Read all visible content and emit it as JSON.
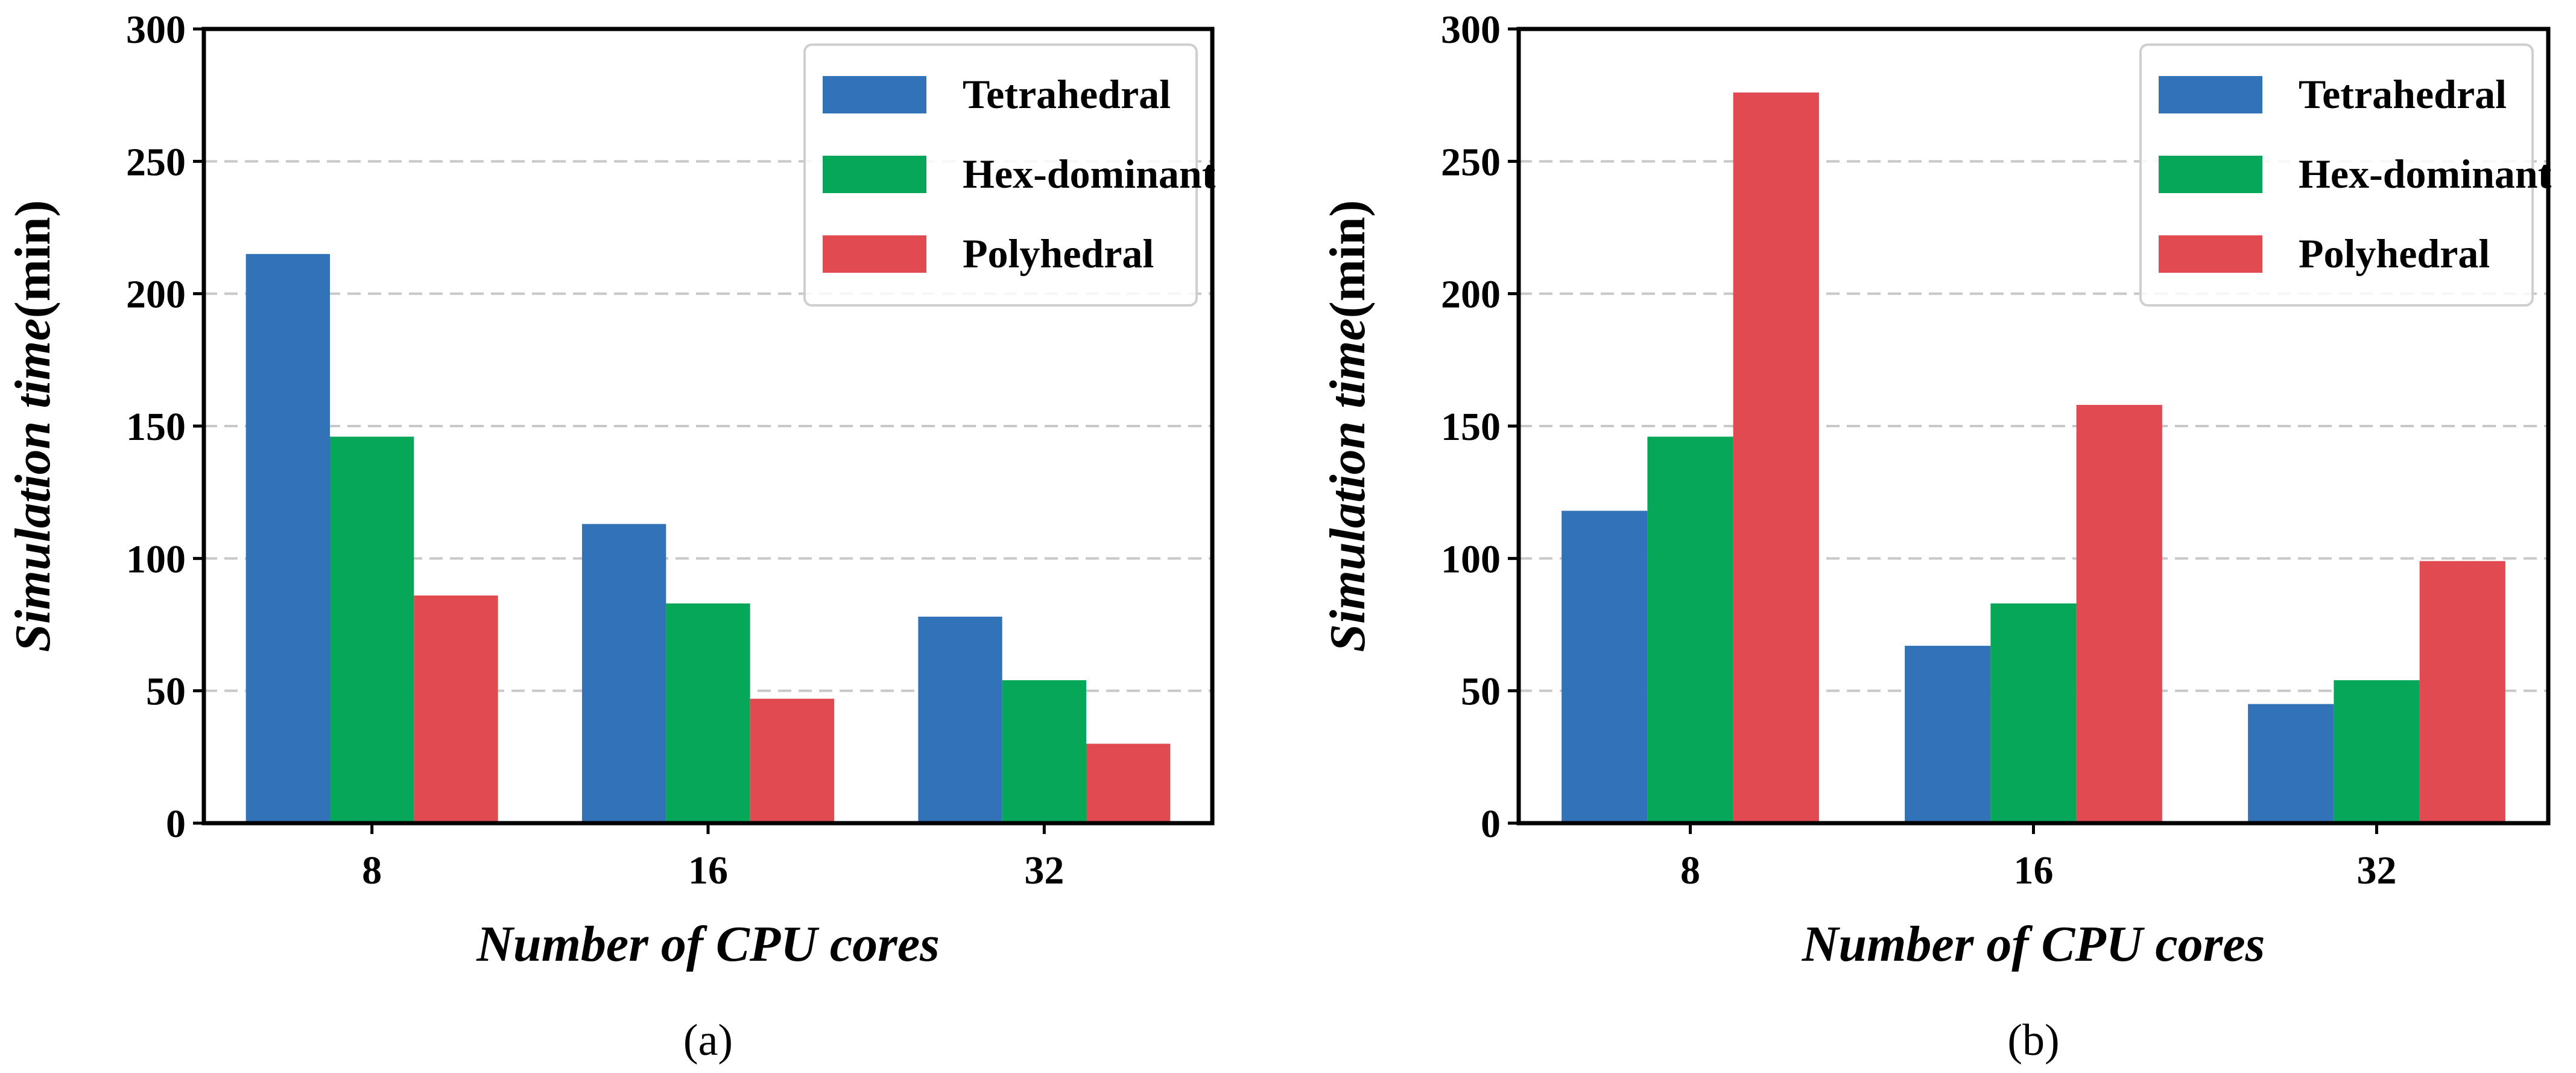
{
  "chart_data": [
    {
      "type": "bar",
      "panel_label": "(a)",
      "categories": [
        "8",
        "16",
        "32"
      ],
      "series": [
        {
          "name": "Tetrahedral",
          "color": "#3272b8",
          "values": [
            215,
            113,
            78
          ]
        },
        {
          "name": "Hex-dominant",
          "color": "#07a75a",
          "values": [
            146,
            83,
            54
          ]
        },
        {
          "name": "Polyhedral",
          "color": "#e24a51",
          "values": [
            86,
            47,
            30
          ]
        }
      ],
      "xlabel": "Number of CPU cores",
      "ylabel": "Simulation time",
      "ylabel_unit": "(min)",
      "ylim": [
        0,
        300
      ],
      "yticks": [
        0,
        50,
        100,
        150,
        200,
        250,
        300
      ],
      "grid": "horizontal-dashed",
      "legend_position": "top-right"
    },
    {
      "type": "bar",
      "panel_label": "(b)",
      "categories": [
        "8",
        "16",
        "32"
      ],
      "series": [
        {
          "name": "Tetrahedral",
          "color": "#3272b8",
          "values": [
            118,
            67,
            45
          ]
        },
        {
          "name": "Hex-dominant",
          "color": "#07a75a",
          "values": [
            146,
            83,
            54
          ]
        },
        {
          "name": "Polyhedral",
          "color": "#e24a51",
          "values": [
            276,
            158,
            99
          ]
        }
      ],
      "xlabel": "Number of CPU cores",
      "ylabel": "Simulation time",
      "ylabel_unit": "(min)",
      "ylim": [
        0,
        300
      ],
      "yticks": [
        0,
        50,
        100,
        150,
        200,
        250,
        300
      ],
      "grid": "horizontal-dashed",
      "legend_position": "top-right"
    }
  ]
}
